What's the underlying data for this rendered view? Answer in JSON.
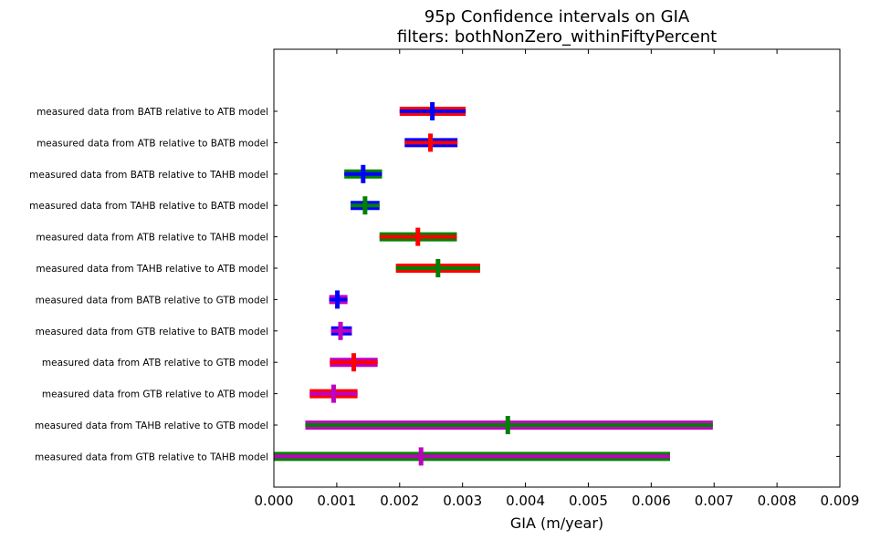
{
  "chart_data": {
    "type": "errorbar",
    "title": "95p Confidence intervals on GIA",
    "subtitle": "filters: bothNonZero_withinFiftyPercent",
    "xlabel": "GIA (m/year)",
    "ylabel": "",
    "xlim": [
      0.0,
      0.009
    ],
    "xticks": [
      "0.000",
      "0.001",
      "0.002",
      "0.003",
      "0.004",
      "0.005",
      "0.006",
      "0.007",
      "0.008",
      "0.009"
    ],
    "grid": false,
    "legend": "none",
    "rows": [
      {
        "label": "measured data from BATB relative to ATB model",
        "low": 0.002,
        "high": 0.00305,
        "center": 0.00252,
        "outer_color": "#ff0000",
        "inner_color": "#0000ff",
        "marker_color": "#0000ff"
      },
      {
        "label": "measured data from ATB relative to BATB model",
        "low": 0.00208,
        "high": 0.00292,
        "center": 0.00249,
        "outer_color": "#0000ff",
        "inner_color": "#ff0000",
        "marker_color": "#ff0000"
      },
      {
        "label": "measured data from BATB relative to TAHB model",
        "low": 0.00112,
        "high": 0.00172,
        "center": 0.00142,
        "outer_color": "#008000",
        "inner_color": "#0000ff",
        "marker_color": "#0000ff"
      },
      {
        "label": "measured data from TAHB relative to BATB model",
        "low": 0.00122,
        "high": 0.00168,
        "center": 0.00145,
        "outer_color": "#0000ff",
        "inner_color": "#008000",
        "marker_color": "#008000"
      },
      {
        "label": "measured data from ATB relative to TAHB model",
        "low": 0.00168,
        "high": 0.00291,
        "center": 0.00229,
        "outer_color": "#008000",
        "inner_color": "#ff0000",
        "marker_color": "#ff0000"
      },
      {
        "label": "measured data from TAHB relative to ATB model",
        "low": 0.00194,
        "high": 0.00328,
        "center": 0.00261,
        "outer_color": "#ff0000",
        "inner_color": "#008000",
        "marker_color": "#008000"
      },
      {
        "label": "measured data from BATB relative to GTB model",
        "low": 0.00088,
        "high": 0.00117,
        "center": 0.00101,
        "outer_color": "#bf00bf",
        "inner_color": "#0000ff",
        "marker_color": "#0000ff"
      },
      {
        "label": "measured data from GTB relative to BATB model",
        "low": 0.00091,
        "high": 0.00124,
        "center": 0.00106,
        "outer_color": "#0000ff",
        "inner_color": "#bf00bf",
        "marker_color": "#bf00bf"
      },
      {
        "label": "measured data from ATB relative to GTB model",
        "low": 0.00089,
        "high": 0.00165,
        "center": 0.00127,
        "outer_color": "#bf00bf",
        "inner_color": "#ff0000",
        "marker_color": "#ff0000"
      },
      {
        "label": "measured data from GTB relative to ATB model",
        "low": 0.00057,
        "high": 0.00133,
        "center": 0.00095,
        "outer_color": "#ff0000",
        "inner_color": "#bf00bf",
        "marker_color": "#bf00bf"
      },
      {
        "label": "measured data from TAHB relative to GTB model",
        "low": 0.0005,
        "high": 0.00698,
        "center": 0.00372,
        "outer_color": "#bf00bf",
        "inner_color": "#008000",
        "marker_color": "#008000"
      },
      {
        "label": "measured data from GTB relative to TAHB model",
        "low": -5e-05,
        "high": 0.0063,
        "center": 0.00234,
        "outer_color": "#008000",
        "inner_color": "#bf00bf",
        "marker_color": "#bf00bf"
      }
    ]
  }
}
